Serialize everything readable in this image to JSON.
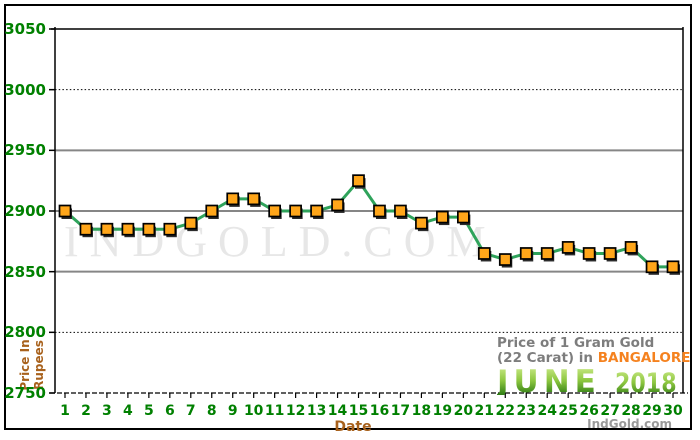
{
  "watermark": {
    "text": "IndGold.Com"
  },
  "y_axis": {
    "title_line1": "Price In",
    "title_line2": "Rupees",
    "gridlines": [
      {
        "value": 3050,
        "style": "top"
      },
      {
        "value": 3000,
        "style": "dotted"
      },
      {
        "value": 2950,
        "style": "gray"
      },
      {
        "value": 2900,
        "style": "gray"
      },
      {
        "value": 2850,
        "style": "gray"
      },
      {
        "value": 2800,
        "style": "dotted"
      },
      {
        "value": 2750,
        "style": "axis"
      }
    ]
  },
  "x_axis": {
    "title": "Date"
  },
  "caption": {
    "line1": "Price of 1 Gram Gold",
    "line2_prefix": "(22 Carat) in ",
    "city": "BANGALORE",
    "month": "JUNE",
    "year": "2018",
    "credit": "IndGold.com"
  },
  "chart_data": {
    "type": "line",
    "title": "Price of 1 Gram Gold (22 Carat) in BANGALORE - JUNE 2018",
    "xlabel": "Date",
    "ylabel": "Price In Rupees",
    "ylim": [
      2750,
      3050
    ],
    "ytick_interval": 50,
    "yticks": [
      3050,
      3000,
      2950,
      2900,
      2850,
      2800,
      2750
    ],
    "grid": true,
    "legend": "none",
    "x": [
      1,
      2,
      3,
      4,
      5,
      6,
      7,
      8,
      9,
      10,
      11,
      12,
      13,
      14,
      15,
      16,
      17,
      18,
      19,
      20,
      21,
      22,
      23,
      24,
      25,
      26,
      27,
      28,
      29,
      30
    ],
    "values": [
      2900,
      2885,
      2885,
      2885,
      2885,
      2885,
      2890,
      2900,
      2910,
      2910,
      2900,
      2900,
      2900,
      2905,
      2925,
      2900,
      2900,
      2890,
      2895,
      2895,
      2865,
      2860,
      2865,
      2865,
      2870,
      2865,
      2865,
      2870,
      2854,
      2854
    ],
    "line_color": "#2fa35b",
    "marker_fill": "#ffa61a",
    "marker_stroke": "#000000",
    "grid_gray": "#868686",
    "tick_label_color": "#008000",
    "axis_title_color": "#a8611c"
  }
}
